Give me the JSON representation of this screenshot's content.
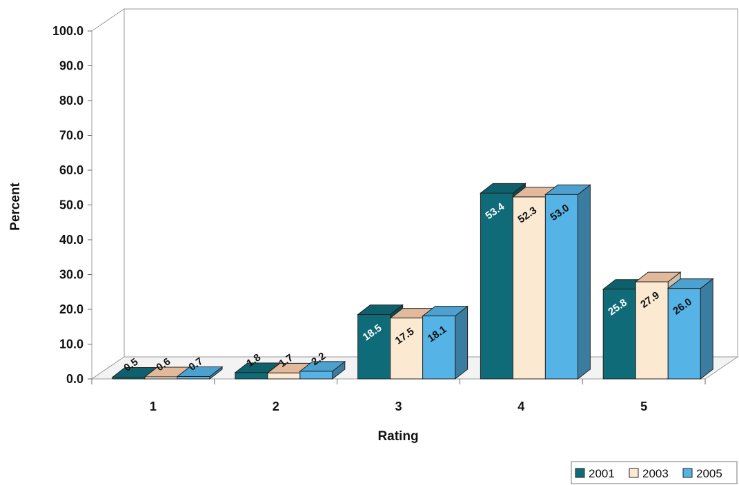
{
  "chart_data": {
    "type": "bar",
    "title": "",
    "xlabel": "Rating",
    "ylabel": "Percent",
    "categories": [
      "1",
      "2",
      "3",
      "4",
      "5"
    ],
    "ylim": [
      0,
      100
    ],
    "yticks": [
      "0.0",
      "10.0",
      "20.0",
      "30.0",
      "40.0",
      "50.0",
      "60.0",
      "70.0",
      "80.0",
      "90.0",
      "100.0"
    ],
    "series": [
      {
        "name": "2001",
        "values": [
          0.5,
          1.8,
          18.5,
          53.4,
          25.8
        ],
        "labels": [
          "0.5",
          "1.8",
          "18.5",
          "53.4",
          "25.8"
        ],
        "color": "#0f6b78"
      },
      {
        "name": "2003",
        "values": [
          0.6,
          1.7,
          17.5,
          52.3,
          27.9
        ],
        "labels": [
          "0.6",
          "1.7",
          "17.5",
          "52.3",
          "27.9"
        ],
        "color": "#fbe9d2"
      },
      {
        "name": "2005",
        "values": [
          0.7,
          2.2,
          18.1,
          53.0,
          26.0
        ],
        "labels": [
          "0.7",
          "2.2",
          "18.1",
          "53.0",
          "26.0"
        ],
        "color": "#55b3e6"
      }
    ],
    "grid": false,
    "legend_position": "bottom-right",
    "style": "3d-clustered-bar"
  }
}
